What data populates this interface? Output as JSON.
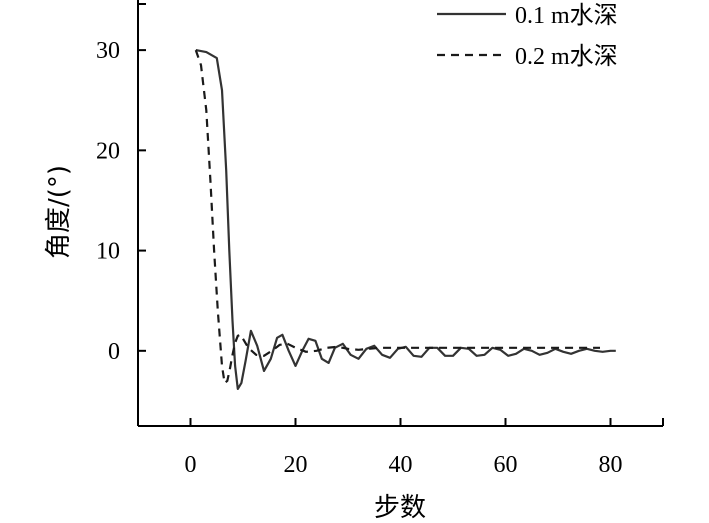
{
  "chart_data": {
    "type": "line",
    "xlabel": "步数",
    "ylabel": "角度/(°)",
    "xlim": [
      -10,
      90
    ],
    "ylim": [
      -7.5,
      35
    ],
    "xticks": [
      0,
      20,
      40,
      60,
      80
    ],
    "yticks": [
      0,
      10,
      20,
      30
    ],
    "grid": false,
    "legend": "top-right",
    "series": [
      {
        "name": "0.1 m水深",
        "style": "solid",
        "color": "#333333",
        "x": [
          1,
          3,
          5,
          6,
          6.8,
          7.4,
          8,
          8.5,
          9,
          9.7,
          10.5,
          11.5,
          12.7,
          14,
          15.3,
          16.5,
          17.5,
          18.7,
          20,
          21.3,
          22.5,
          23.8,
          25,
          26.3,
          27.5,
          29,
          30.5,
          32,
          33.5,
          35,
          36.5,
          38,
          39.5,
          41,
          42.5,
          44,
          45.5,
          47,
          48.5,
          50,
          51.5,
          53,
          54.5,
          56,
          57.5,
          59,
          60.5,
          62,
          63.5,
          65,
          66.5,
          68,
          69.5,
          71,
          72.5,
          74,
          75.5,
          77,
          78.5,
          80,
          81
        ],
        "y": [
          30,
          29.8,
          29.2,
          26,
          18,
          10,
          3,
          -1.5,
          -3.8,
          -3.2,
          -1,
          2,
          0.5,
          -2,
          -0.8,
          1.3,
          1.6,
          0,
          -1.5,
          0,
          1.2,
          1,
          -0.8,
          -1.2,
          0.3,
          0.7,
          -0.4,
          -0.8,
          0.2,
          0.5,
          -0.4,
          -0.7,
          0.2,
          0.4,
          -0.5,
          -0.6,
          0.3,
          0.3,
          -0.5,
          -0.5,
          0.3,
          0.2,
          -0.5,
          -0.4,
          0.3,
          0.1,
          -0.5,
          -0.3,
          0.2,
          0,
          -0.4,
          -0.2,
          0.2,
          -0.1,
          -0.3,
          0,
          0.2,
          0,
          -0.1,
          0,
          0
        ]
      },
      {
        "name": "0.2 m水深",
        "style": "dashed",
        "color": "#1a1a1a",
        "x": [
          1,
          2,
          3,
          3.8,
          4.5,
          5.2,
          6,
          6.5,
          7,
          7.5,
          8,
          8.5,
          9,
          9.5,
          10,
          11,
          12.5,
          14,
          15.5,
          17,
          18.5,
          20,
          22,
          24,
          26,
          28,
          30,
          32,
          34,
          36,
          38,
          40,
          42,
          45,
          50,
          55,
          60,
          65,
          70,
          75,
          78
        ],
        "y": [
          30,
          28.5,
          24,
          17,
          10,
          4,
          -1.5,
          -3.2,
          -3,
          -1.8,
          -0.4,
          0.8,
          1.5,
          1.6,
          1.2,
          0.3,
          -0.4,
          -0.5,
          0,
          0.6,
          0.7,
          0.3,
          -0.1,
          0,
          0.3,
          0.4,
          0.2,
          0.1,
          0.2,
          0.3,
          0.3,
          0.3,
          0.3,
          0.3,
          0.3,
          0.3,
          0.3,
          0.3,
          0.3,
          0.3,
          0.3
        ]
      }
    ]
  }
}
